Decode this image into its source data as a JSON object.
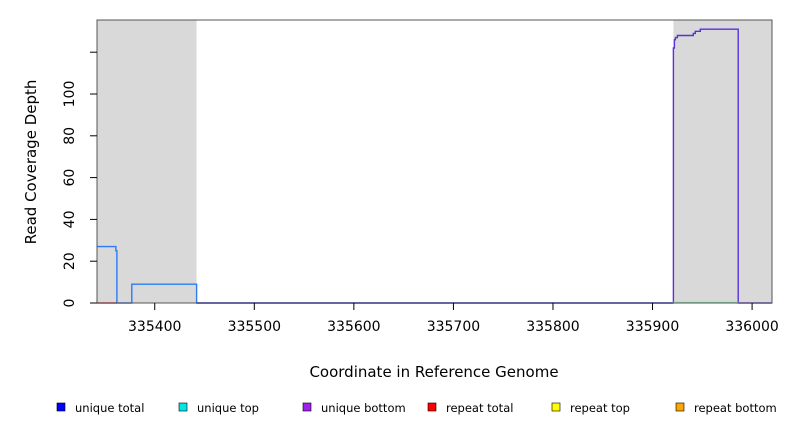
{
  "chart_data": {
    "type": "line",
    "title": "",
    "xlabel": "Coordinate in Reference Genome",
    "ylabel": "Read Coverage Depth",
    "xlim": [
      335342,
      336020
    ],
    "ylim": [
      -1,
      136
    ],
    "x_ticks": [
      335400,
      335500,
      335600,
      335700,
      335800,
      335900,
      336000
    ],
    "y_ticks": [
      0,
      20,
      40,
      60,
      80,
      100
    ],
    "grid": false,
    "shaded_regions": [
      {
        "x_start": 335342,
        "x_end": 335442,
        "color": "#d9d9d9"
      },
      {
        "x_start": 335921,
        "x_end": 336020,
        "color": "#d9d9d9"
      }
    ],
    "series": [
      {
        "name": "unique total",
        "color": "#2a7cf6",
        "points": [
          [
            335342,
            27
          ],
          [
            335361,
            27
          ],
          [
            335361,
            25
          ],
          [
            335362,
            25
          ],
          [
            335362,
            0
          ],
          [
            335377,
            0
          ],
          [
            335377,
            9
          ],
          [
            335442,
            9
          ],
          [
            335442,
            0
          ],
          [
            335920,
            0
          ]
        ]
      },
      {
        "name": "unique bottom",
        "color": "#5b2fe0",
        "points": [
          [
            335442,
            0
          ],
          [
            335920,
            0
          ],
          [
            335921,
            0
          ],
          [
            335921,
            122
          ],
          [
            335922,
            122
          ],
          [
            335922,
            126
          ],
          [
            335923,
            126
          ],
          [
            335923,
            127
          ],
          [
            335925,
            127
          ],
          [
            335925,
            128
          ],
          [
            335941,
            128
          ],
          [
            335941,
            129
          ],
          [
            335943,
            129
          ],
          [
            335943,
            130
          ],
          [
            335948,
            130
          ],
          [
            335948,
            131
          ],
          [
            335986,
            131
          ],
          [
            335986,
            0
          ],
          [
            336020,
            0
          ]
        ]
      },
      {
        "name": "unique top",
        "color": "#8fe0b0",
        "points": [
          [
            335921,
            0.3
          ],
          [
            335986,
            0.3
          ]
        ]
      },
      {
        "name": "repeat total",
        "color": "#e03030",
        "points": [
          [
            335342,
            0
          ],
          [
            335362,
            0
          ]
        ]
      }
    ],
    "legend": {
      "placement": "bottom",
      "entries": [
        {
          "label": "unique total",
          "color": "#0000ff"
        },
        {
          "label": "unique top",
          "color": "#00e5e5"
        },
        {
          "label": "unique bottom",
          "color": "#a020f0"
        },
        {
          "label": "repeat total",
          "color": "#ff0000"
        },
        {
          "label": "repeat top",
          "color": "#ffff00"
        },
        {
          "label": "repeat bottom",
          "color": "#ffa500"
        }
      ]
    }
  }
}
